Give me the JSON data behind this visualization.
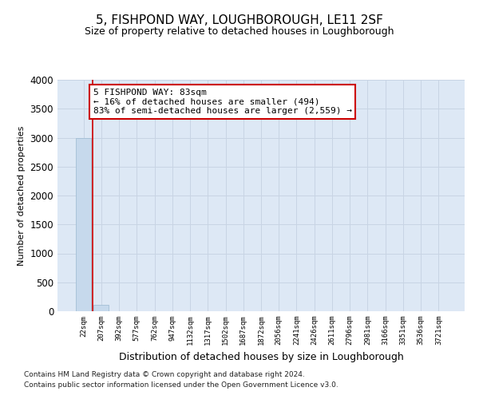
{
  "title": "5, FISHPOND WAY, LOUGHBOROUGH, LE11 2SF",
  "subtitle": "Size of property relative to detached houses in Loughborough",
  "xlabel": "Distribution of detached houses by size in Loughborough",
  "ylabel": "Number of detached properties",
  "footnote1": "Contains HM Land Registry data © Crown copyright and database right 2024.",
  "footnote2": "Contains public sector information licensed under the Open Government Licence v3.0.",
  "categories": [
    "22sqm",
    "207sqm",
    "392sqm",
    "577sqm",
    "762sqm",
    "947sqm",
    "1132sqm",
    "1317sqm",
    "1502sqm",
    "1687sqm",
    "1872sqm",
    "2056sqm",
    "2241sqm",
    "2426sqm",
    "2611sqm",
    "2796sqm",
    "2981sqm",
    "3166sqm",
    "3351sqm",
    "3536sqm",
    "3721sqm"
  ],
  "bar_values": [
    3000,
    110,
    0,
    0,
    0,
    0,
    0,
    0,
    0,
    0,
    0,
    0,
    0,
    0,
    0,
    0,
    0,
    0,
    0,
    0,
    0
  ],
  "bar_color": "#c6d9ec",
  "bar_edge_color": "#9ab8d0",
  "annotation_line1": "5 FISHPOND WAY: 83sqm",
  "annotation_line2": "← 16% of detached houses are smaller (494)",
  "annotation_line3": "83% of semi-detached houses are larger (2,559) →",
  "annotation_box_color": "#cc0000",
  "red_line_x": 0.5,
  "ylim": [
    0,
    4000
  ],
  "yticks": [
    0,
    500,
    1000,
    1500,
    2000,
    2500,
    3000,
    3500,
    4000
  ],
  "grid_color": "#c8d4e4",
  "background_color": "#dde8f5",
  "title_fontsize": 11,
  "subtitle_fontsize": 9,
  "ylabel_fontsize": 8,
  "xlabel_fontsize": 9,
  "footnote_fontsize": 6.5,
  "ann_fontsize": 8
}
